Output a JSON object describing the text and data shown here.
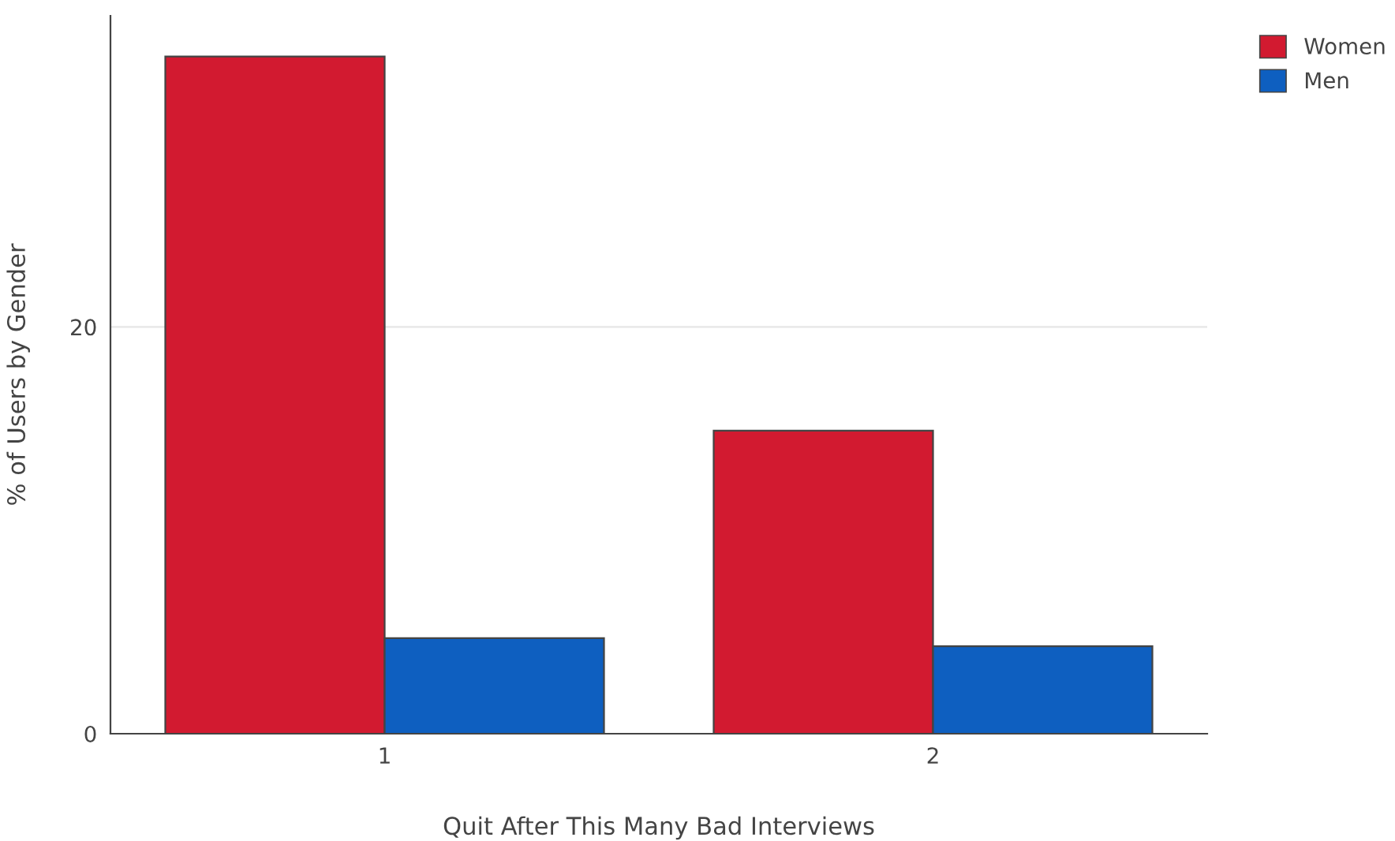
{
  "chart_data": {
    "type": "bar",
    "xlabel": "Quit After This Many Bad Interviews",
    "ylabel": "% of Users by Gender",
    "categories": [
      "1",
      "2"
    ],
    "series": [
      {
        "name": "Women",
        "color": "#d21a30",
        "values": [
          33.3,
          14.9
        ]
      },
      {
        "name": "Men",
        "color": "#0e5fc0",
        "values": [
          4.7,
          4.3
        ]
      }
    ],
    "ylim": [
      0,
      35.3
    ],
    "yticks": [
      0,
      20
    ],
    "grid": "y",
    "legend": "top right"
  }
}
